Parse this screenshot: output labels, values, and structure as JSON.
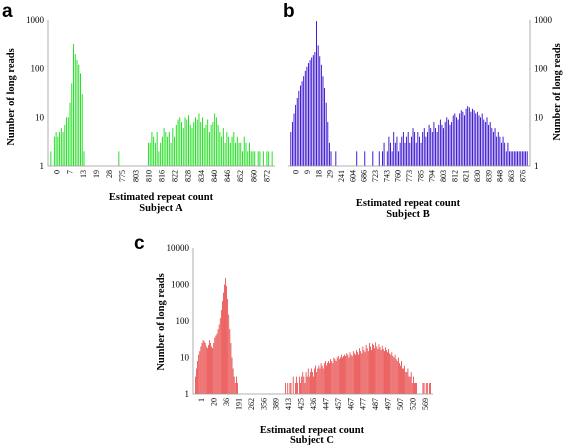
{
  "chart_data": [
    {
      "panel": "a",
      "type": "bar",
      "color": "#22dd22",
      "ylabel": "Number of long reads",
      "xlabel": "Estimated repeat count",
      "subject": "Subject A",
      "yscale": "log",
      "ylim": [
        1,
        1000
      ],
      "yticks": [
        "1",
        "10",
        "100",
        "1000"
      ],
      "xticks": [
        "0",
        "7",
        "13",
        "19",
        "28",
        "775",
        "803",
        "810",
        "816",
        "822",
        "828",
        "834",
        "840",
        "846",
        "852",
        "860",
        "872"
      ],
      "values": [
        2,
        0,
        4,
        5,
        4,
        5,
        6,
        5,
        7,
        10,
        10,
        20,
        50,
        320,
        200,
        150,
        120,
        80,
        30,
        2,
        0,
        0,
        0,
        0,
        0,
        0,
        0,
        0,
        0,
        0,
        0,
        0,
        0,
        0,
        0,
        0,
        0,
        0,
        0,
        2,
        0,
        0,
        0,
        1,
        1,
        1,
        0,
        0,
        0,
        0,
        0,
        1,
        0,
        0,
        0,
        0,
        3,
        3,
        5,
        4,
        3,
        5,
        2,
        3,
        4,
        6,
        5,
        4,
        5,
        3,
        6,
        4,
        7,
        9,
        10,
        8,
        6,
        10,
        9,
        11,
        7,
        6,
        8,
        10,
        9,
        12,
        8,
        10,
        6,
        7,
        9,
        5,
        7,
        8,
        12,
        10,
        7,
        5,
        4,
        6,
        3,
        5,
        4,
        3,
        4,
        5,
        3,
        4,
        3,
        3,
        2,
        4,
        3,
        2,
        3,
        2,
        2,
        2,
        0,
        2,
        2,
        0,
        2,
        0,
        2,
        2,
        0,
        2
      ]
    },
    {
      "panel": "b",
      "type": "bar",
      "color": "#2a00cc",
      "ylabel": "Number of long reads",
      "xlabel": "Estimated repeat count",
      "subject": "Subject B",
      "yscale": "log",
      "ylim": [
        1,
        1000
      ],
      "yticks": [
        "1",
        "10",
        "100",
        "1000"
      ],
      "xticks": [
        "0",
        "9",
        "18",
        "29",
        "241",
        "604",
        "686",
        "723",
        "743",
        "760",
        "773",
        "785",
        "794",
        "803",
        "812",
        "821",
        "830",
        "839",
        "848",
        "863",
        "876"
      ],
      "values": [
        5,
        8,
        12,
        18,
        25,
        35,
        45,
        55,
        70,
        90,
        110,
        130,
        150,
        170,
        190,
        220,
        950,
        300,
        180,
        120,
        70,
        40,
        20,
        8,
        3,
        2,
        0,
        0,
        2,
        0,
        0,
        0,
        0,
        0,
        0,
        0,
        0,
        0,
        0,
        0,
        0,
        2,
        0,
        0,
        0,
        0,
        2,
        0,
        0,
        0,
        0,
        2,
        0,
        0,
        0,
        2,
        0,
        2,
        3,
        0,
        2,
        4,
        3,
        2,
        5,
        3,
        4,
        2,
        3,
        4,
        5,
        3,
        4,
        5,
        3,
        4,
        6,
        5,
        3,
        5,
        4,
        3,
        5,
        6,
        4,
        5,
        7,
        6,
        5,
        8,
        6,
        5,
        7,
        9,
        7,
        6,
        8,
        10,
        9,
        7,
        8,
        11,
        12,
        10,
        9,
        12,
        14,
        13,
        11,
        15,
        17,
        16,
        13,
        15,
        14,
        12,
        13,
        11,
        10,
        12,
        9,
        8,
        10,
        7,
        8,
        6,
        5,
        6,
        4,
        5,
        4,
        3,
        4,
        3,
        2,
        3,
        2,
        2,
        2,
        2,
        2,
        2,
        2,
        2,
        2,
        2,
        2,
        2
      ]
    },
    {
      "panel": "c",
      "type": "bar",
      "color": "#e00000",
      "ylabel": "Number of long reads",
      "xlabel": "Estimated repeat count",
      "subject": "Subject C",
      "yscale": "log",
      "ylim": [
        1,
        10000
      ],
      "yticks": [
        "1",
        "10",
        "100",
        "1000",
        "10000"
      ],
      "xticks": [
        "1",
        "20",
        "36",
        "191",
        "262",
        "356",
        "389",
        "413",
        "425",
        "436",
        "447",
        "457",
        "467",
        "477",
        "487",
        "497",
        "507",
        "520",
        "569"
      ],
      "values": [
        3,
        5,
        8,
        12,
        15,
        20,
        25,
        30,
        28,
        25,
        20,
        18,
        22,
        30,
        25,
        20,
        18,
        25,
        35,
        40,
        45,
        60,
        80,
        120,
        200,
        350,
        600,
        1000,
        1500,
        900,
        400,
        150,
        60,
        25,
        10,
        5,
        3,
        2,
        3,
        2,
        0,
        0,
        0,
        0,
        0,
        0,
        0,
        0,
        0,
        0,
        0,
        0,
        0,
        0,
        0,
        0,
        0,
        0,
        0,
        0,
        0,
        0,
        0,
        0,
        0,
        0,
        0,
        0,
        0,
        0,
        0,
        0,
        0,
        0,
        0,
        0,
        0,
        0,
        0,
        0,
        0,
        0,
        0,
        0,
        2,
        0,
        2,
        0,
        2,
        2,
        0,
        3,
        0,
        2,
        3,
        2,
        0,
        3,
        2,
        3,
        4,
        3,
        2,
        4,
        3,
        5,
        3,
        4,
        5,
        4,
        3,
        5,
        6,
        4,
        5,
        6,
        5,
        7,
        6,
        5,
        7,
        8,
        6,
        7,
        8,
        7,
        9,
        8,
        7,
        10,
        9,
        8,
        10,
        11,
        9,
        10,
        12,
        10,
        11,
        12,
        11,
        13,
        12,
        10,
        14,
        12,
        11,
        15,
        13,
        12,
        16,
        14,
        12,
        18,
        15,
        13,
        20,
        16,
        14,
        22,
        18,
        15,
        25,
        20,
        16,
        24,
        22,
        18,
        26,
        20,
        17,
        23,
        19,
        16,
        21,
        17,
        15,
        19,
        16,
        14,
        17,
        13,
        12,
        14,
        11,
        10,
        12,
        9,
        8,
        10,
        7,
        6,
        8,
        5,
        5,
        6,
        4,
        4,
        5,
        3,
        3,
        4,
        2,
        3,
        2,
        2,
        2,
        0,
        0,
        0,
        0,
        0,
        2,
        2,
        0,
        2,
        2,
        0,
        2,
        2
      ]
    }
  ]
}
